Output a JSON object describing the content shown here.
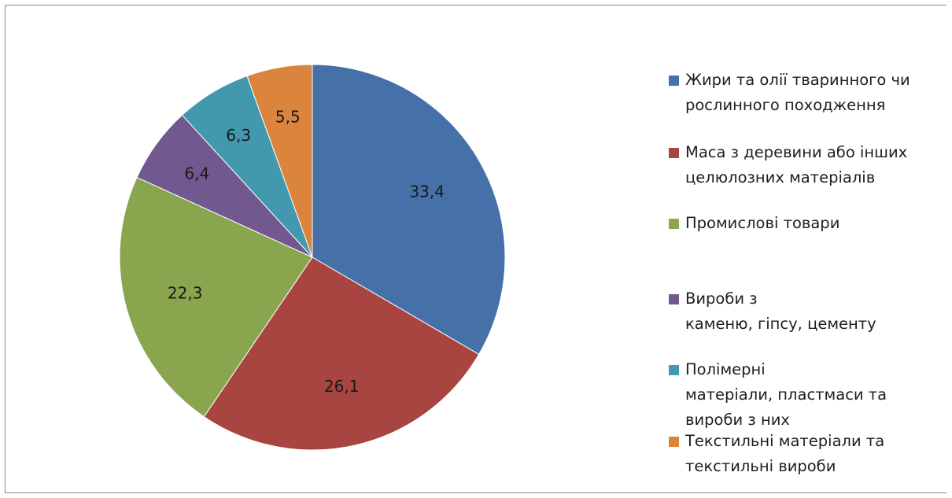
{
  "chart_data": {
    "type": "pie",
    "title": "",
    "start_angle_deg": 0,
    "direction": "clockwise",
    "legend_position": "right",
    "slices": [
      {
        "label": "Жири та олії тваринного чи рослинного походження",
        "value": 33.4,
        "display": "33,4",
        "color": "#4571A8"
      },
      {
        "label": "Маса з деревини або інших целюлозних матеріалів",
        "value": 26.1,
        "display": "26,1",
        "color": "#A84541"
      },
      {
        "label": "Промислові товари",
        "value": 22.3,
        "display": "22,3",
        "color": "#89A54E"
      },
      {
        "label": "Вироби з каменю, гіпсу, цементу",
        "value": 6.4,
        "display": "6,4",
        "color": "#71588F"
      },
      {
        "label": "Полімерні матеріали, пластмаси та вироби з них",
        "value": 6.3,
        "display": "6,3",
        "color": "#4298AF"
      },
      {
        "label": "Текстильні матеріали та текстильні вироби",
        "value": 5.5,
        "display": "5,5",
        "color": "#DB843D"
      }
    ]
  },
  "legend": {
    "items": [
      {
        "text": "Жири та олії тваринного чи\nрослинного походження",
        "color": "#4571A8"
      },
      {
        "text": "Маса з деревини або інших\nцелюлозних матеріалів",
        "color": "#A84541"
      },
      {
        "text": "Промислові товари",
        "color": "#89A54E"
      },
      {
        "text": "Вироби з\nкаменю, гіпсу, цементу",
        "color": "#71588F"
      },
      {
        "text": "Полімерні\nматеріали, пластмаси та\nвироби з них",
        "color": "#4298AF"
      },
      {
        "text": "Текстильні матеріали та\nтекстильні вироби",
        "color": "#DB843D"
      }
    ]
  }
}
